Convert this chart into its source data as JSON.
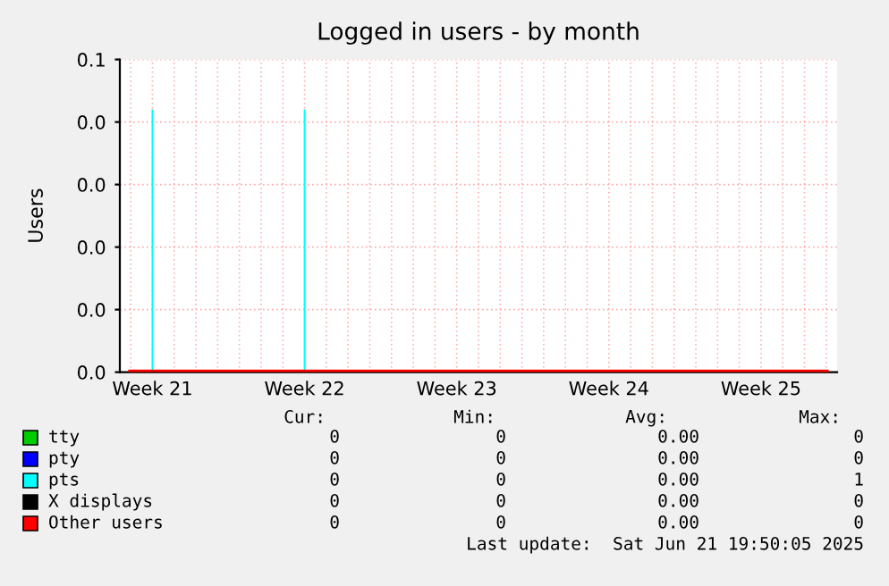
{
  "chart_data": {
    "type": "line",
    "title": "Logged in users - by month",
    "ylabel": "Users",
    "categories": [
      null,
      "Week 21",
      null,
      null,
      null,
      null,
      null,
      null,
      "Week 22",
      null,
      null,
      null,
      null,
      null,
      null,
      "Week 23",
      null,
      null,
      null,
      null,
      null,
      null,
      "Week 24",
      null,
      null,
      null,
      null,
      null,
      null,
      "Week 25",
      null,
      null,
      null
    ],
    "ylim": [
      0,
      0.05
    ],
    "yticks": [
      {
        "value": 0,
        "label": "0.0"
      },
      {
        "value": 0.01,
        "label": "0.0"
      },
      {
        "value": 0.02,
        "label": "0.0"
      },
      {
        "value": 0.03,
        "label": "0.0"
      },
      {
        "value": 0.04,
        "label": "0.0"
      },
      {
        "value": 0.05,
        "label": "0.1"
      }
    ],
    "grid": true,
    "legend": "bottom",
    "series": [
      {
        "name": "tty",
        "color": "#00cc00",
        "values": [
          null,
          null,
          null,
          null,
          null,
          null,
          null,
          null,
          null,
          null,
          null,
          null,
          null,
          null,
          null,
          null,
          null,
          null,
          null,
          null,
          null,
          null,
          null,
          null,
          null,
          null,
          null,
          null,
          null,
          null,
          null,
          null,
          null
        ]
      },
      {
        "name": "pty",
        "color": "#0000ff",
        "values": [
          null,
          null,
          null,
          null,
          null,
          null,
          null,
          null,
          null,
          null,
          null,
          null,
          null,
          null,
          null,
          null,
          null,
          null,
          null,
          null,
          null,
          null,
          null,
          null,
          null,
          null,
          null,
          null,
          null,
          null,
          null,
          null,
          null
        ]
      },
      {
        "name": "pts",
        "type": "bar",
        "color": "#00ffff",
        "values": [
          null,
          0.042,
          null,
          null,
          null,
          null,
          null,
          null,
          0.042,
          null,
          null,
          null,
          null,
          null,
          null,
          null,
          null,
          null,
          null,
          null,
          null,
          null,
          null,
          null,
          null,
          null,
          null,
          null,
          null,
          null,
          null,
          null,
          null
        ]
      },
      {
        "name": "X displays",
        "color": "#000000",
        "values": [
          null,
          null,
          null,
          null,
          null,
          null,
          null,
          null,
          null,
          null,
          null,
          null,
          null,
          null,
          null,
          null,
          null,
          null,
          null,
          null,
          null,
          null,
          null,
          null,
          null,
          null,
          null,
          null,
          null,
          null,
          null,
          null,
          null
        ]
      },
      {
        "name": "Other users",
        "color": "#ff0000",
        "values": [
          0,
          0,
          0,
          0,
          0,
          0,
          0,
          0,
          0,
          0,
          0,
          0,
          0,
          0,
          0,
          0,
          0,
          0,
          0,
          0,
          0,
          0,
          0,
          0,
          0,
          0,
          0,
          0,
          0,
          0,
          0,
          0,
          0
        ]
      }
    ],
    "annotations": [
      "Cur:",
      "Min:",
      "Avg:",
      "Max:",
      "0",
      "0",
      "0.00",
      "0",
      "0",
      "0",
      "0.00",
      "0",
      "0",
      "0",
      "0.00",
      "1",
      "0",
      "0",
      "0.00",
      "0",
      "0",
      "0",
      "0.00",
      "0",
      "Last update:  Sat Jun 21 19:50:05 2025"
    ]
  }
}
